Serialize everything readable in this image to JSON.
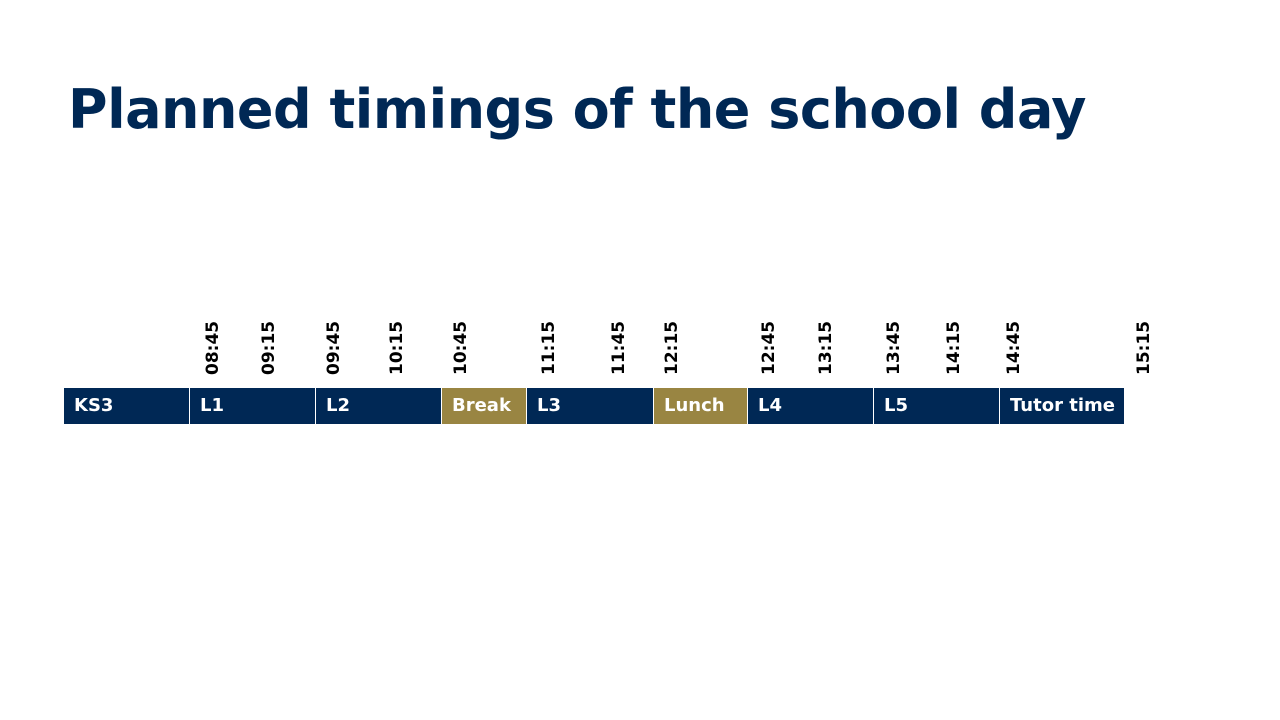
{
  "title": "Planned timings of the school day",
  "colors": {
    "title": "#002855",
    "lesson": "#002855",
    "break": "#998542",
    "divider": "#ffffff"
  },
  "times": [
    "08:45",
    "09:15",
    "09:45",
    "10:15",
    "10:45",
    "11:15",
    "11:45",
    "12:15",
    "12:45",
    "13:15",
    "13:45",
    "14:15",
    "14:45",
    "15:15"
  ],
  "segments": [
    {
      "label": "KS3",
      "kind": "lesson"
    },
    {
      "label": "L1",
      "kind": "lesson",
      "start": "08:45",
      "end": "09:45"
    },
    {
      "label": "L2",
      "kind": "lesson",
      "start": "09:45",
      "end": "10:45"
    },
    {
      "label": "Break",
      "kind": "break",
      "start": "10:45",
      "end": "11:15"
    },
    {
      "label": "L3",
      "kind": "lesson",
      "start": "11:15",
      "end": "12:15"
    },
    {
      "label": "Lunch",
      "kind": "break",
      "start": "12:15",
      "end": "12:45"
    },
    {
      "label": "L4",
      "kind": "lesson",
      "start": "12:45",
      "end": "13:45"
    },
    {
      "label": "L5",
      "kind": "lesson",
      "start": "13:45",
      "end": "14:45"
    },
    {
      "label": "Tutor time",
      "kind": "lesson",
      "start": "14:45",
      "end": "15:15"
    }
  ]
}
